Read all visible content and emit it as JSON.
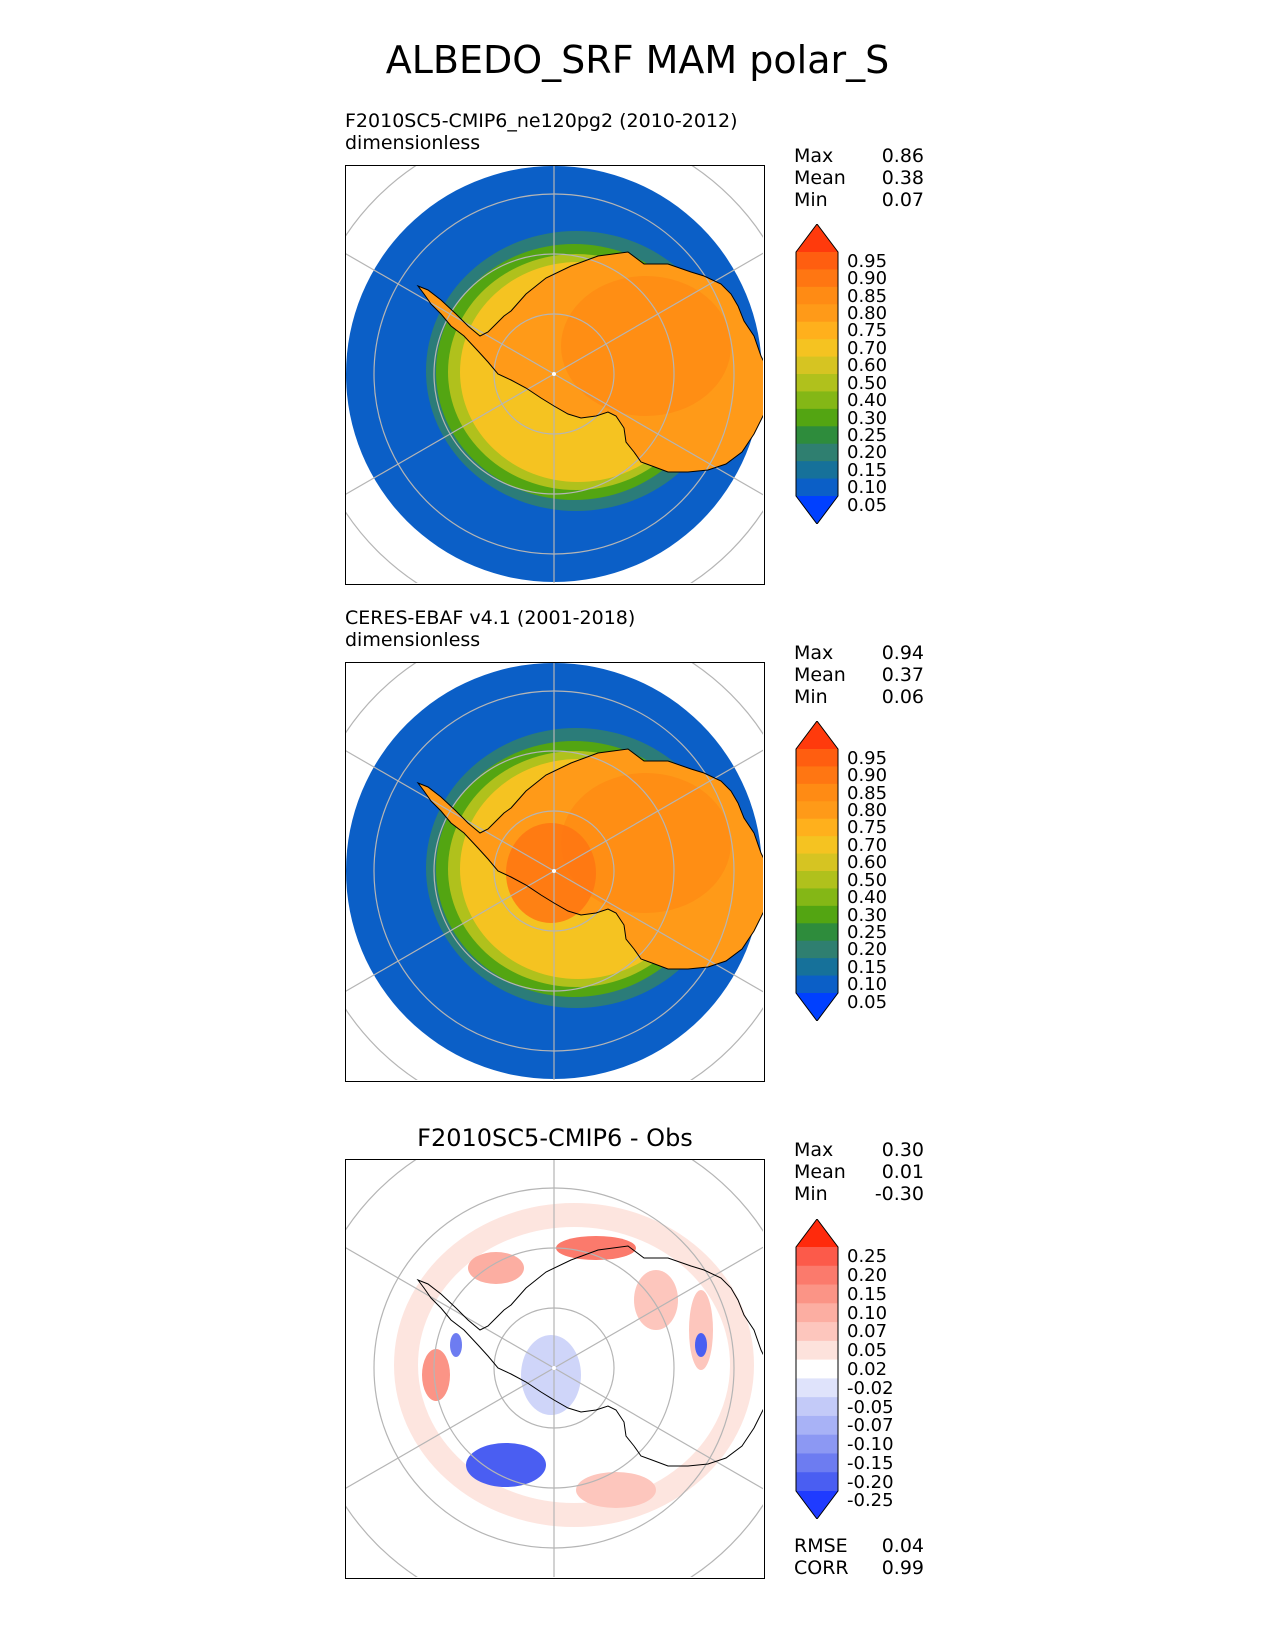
{
  "title": "ALBEDO_SRF MAM polar_S",
  "panels": [
    {
      "id": "test",
      "title_line1": "F2010SC5-CMIP6_ne120pg2 (2010-2012)",
      "title_line2": "dimensionless",
      "stats": [
        {
          "label": "Max",
          "value": "0.86"
        },
        {
          "label": "Mean",
          "value": "0.38"
        },
        {
          "label": "Min",
          "value": "0.07"
        }
      ],
      "colorbar": {
        "labels": [
          "0.95",
          "0.90",
          "0.85",
          "0.80",
          "0.75",
          "0.70",
          "0.60",
          "0.50",
          "0.40",
          "0.30",
          "0.25",
          "0.20",
          "0.15",
          "0.10",
          "0.05"
        ],
        "colors": [
          "#ff3a0c",
          "#ff5e10",
          "#ff7612",
          "#ff8b14",
          "#ff9a18",
          "#ffb01c",
          "#f5c321",
          "#d6c422",
          "#b0c11c",
          "#84b716",
          "#53a512",
          "#2e8c3c",
          "#2f7f70",
          "#16719a",
          "#0b5fc7",
          "#0040ff"
        ]
      }
    },
    {
      "id": "ref",
      "title_line1": "CERES-EBAF v4.1 (2001-2018)",
      "title_line2": "dimensionless",
      "stats": [
        {
          "label": "Max",
          "value": "0.94"
        },
        {
          "label": "Mean",
          "value": "0.37"
        },
        {
          "label": "Min",
          "value": "0.06"
        }
      ],
      "colorbar": {
        "labels": [
          "0.95",
          "0.90",
          "0.85",
          "0.80",
          "0.75",
          "0.70",
          "0.60",
          "0.50",
          "0.40",
          "0.30",
          "0.25",
          "0.20",
          "0.15",
          "0.10",
          "0.05"
        ],
        "colors": [
          "#ff3a0c",
          "#ff5e10",
          "#ff7612",
          "#ff8b14",
          "#ff9a18",
          "#ffb01c",
          "#f5c321",
          "#d6c422",
          "#b0c11c",
          "#84b716",
          "#53a512",
          "#2e8c3c",
          "#2f7f70",
          "#16719a",
          "#0b5fc7",
          "#0040ff"
        ]
      }
    },
    {
      "id": "diff",
      "title": "F2010SC5-CMIP6 - Obs",
      "stats": [
        {
          "label": "Max",
          "value": "0.30"
        },
        {
          "label": "Mean",
          "value": "0.01"
        },
        {
          "label": "Min",
          "value": "-0.30"
        }
      ],
      "colorbar": {
        "labels": [
          "0.25",
          "0.20",
          "0.15",
          "0.10",
          "0.07",
          "0.05",
          "0.02",
          "-0.02",
          "-0.05",
          "-0.07",
          "-0.10",
          "-0.15",
          "-0.20",
          "-0.25"
        ],
        "colors": [
          "#ff2a0c",
          "#fc5a4a",
          "#fb7a6c",
          "#fb9486",
          "#fcaea2",
          "#fdc6bd",
          "#fde2dc",
          "#ffffff",
          "#dfe3fb",
          "#c3caf8",
          "#a8b2f6",
          "#8c98f3",
          "#6d7cf1",
          "#4a5ef2",
          "#1f3bff"
        ]
      },
      "error_stats": [
        {
          "label": "RMSE",
          "value": "0.04"
        },
        {
          "label": "CORR",
          "value": "0.99"
        }
      ]
    }
  ],
  "chart_data": [
    {
      "type": "heatmap",
      "projection": "south polar stereographic",
      "title": "F2010SC5-CMIP6_ne120pg2 (2010-2012)",
      "units": "dimensionless",
      "max": 0.86,
      "mean": 0.38,
      "min": 0.07,
      "levels": [
        0.05,
        0.1,
        0.15,
        0.2,
        0.25,
        0.3,
        0.4,
        0.5,
        0.6,
        0.7,
        0.75,
        0.8,
        0.85,
        0.9,
        0.95
      ]
    },
    {
      "type": "heatmap",
      "projection": "south polar stereographic",
      "title": "CERES-EBAF v4.1 (2001-2018)",
      "units": "dimensionless",
      "max": 0.94,
      "mean": 0.37,
      "min": 0.06,
      "levels": [
        0.05,
        0.1,
        0.15,
        0.2,
        0.25,
        0.3,
        0.4,
        0.5,
        0.6,
        0.7,
        0.75,
        0.8,
        0.85,
        0.9,
        0.95
      ]
    },
    {
      "type": "heatmap",
      "projection": "south polar stereographic",
      "title": "F2010SC5-CMIP6 - Obs",
      "max": 0.3,
      "mean": 0.01,
      "min": -0.3,
      "rmse": 0.04,
      "corr": 0.99,
      "levels": [
        -0.25,
        -0.2,
        -0.15,
        -0.1,
        -0.07,
        -0.05,
        -0.02,
        0.02,
        0.05,
        0.07,
        0.1,
        0.15,
        0.2,
        0.25
      ]
    }
  ]
}
